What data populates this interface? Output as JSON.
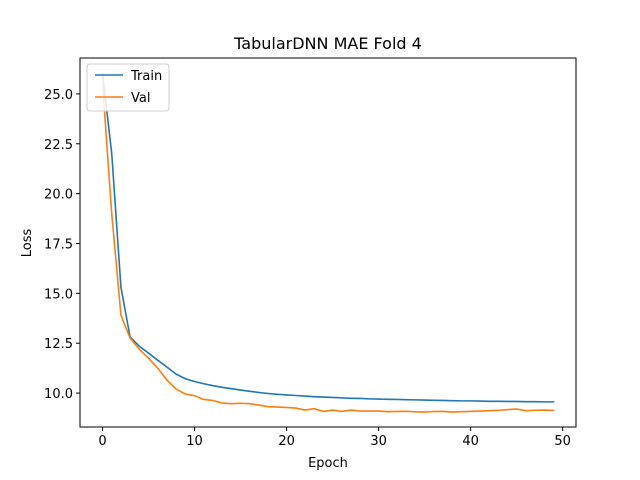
{
  "chart_data": {
    "type": "line",
    "title": "TabularDNN MAE Fold 4",
    "xlabel": "Epoch",
    "ylabel": "Loss",
    "xlim": [
      -2.45,
      51.45
    ],
    "ylim": [
      8.3,
      26.8
    ],
    "xticks": [
      0,
      10,
      20,
      30,
      40,
      50
    ],
    "yticks": [
      10.0,
      12.5,
      15.0,
      17.5,
      20.0,
      22.5,
      25.0
    ],
    "ytick_labels": [
      "10.0",
      "12.5",
      "15.0",
      "17.5",
      "20.0",
      "22.5",
      "25.0"
    ],
    "grid": false,
    "legend": "top-left",
    "x": [
      0,
      1,
      2,
      3,
      4,
      5,
      6,
      7,
      8,
      9,
      10,
      11,
      12,
      13,
      14,
      15,
      16,
      17,
      18,
      19,
      20,
      21,
      22,
      23,
      24,
      25,
      26,
      27,
      28,
      29,
      30,
      31,
      32,
      33,
      34,
      35,
      36,
      37,
      38,
      39,
      40,
      41,
      42,
      43,
      44,
      45,
      46,
      47,
      48,
      49
    ],
    "series": [
      {
        "name": "Train",
        "color": "#1f77b4",
        "values": [
          26.0,
          22.0,
          15.3,
          12.8,
          12.35,
          12.0,
          11.65,
          11.3,
          10.95,
          10.72,
          10.58,
          10.47,
          10.37,
          10.29,
          10.22,
          10.15,
          10.09,
          10.03,
          9.98,
          9.94,
          9.91,
          9.88,
          9.85,
          9.82,
          9.8,
          9.78,
          9.76,
          9.74,
          9.73,
          9.71,
          9.7,
          9.69,
          9.68,
          9.67,
          9.66,
          9.65,
          9.64,
          9.63,
          9.62,
          9.61,
          9.61,
          9.6,
          9.59,
          9.59,
          9.58,
          9.58,
          9.57,
          9.57,
          9.56,
          9.56
        ]
      },
      {
        "name": "Val",
        "color": "#ff7f0e",
        "values": [
          25.5,
          19.0,
          13.9,
          12.75,
          12.2,
          11.75,
          11.25,
          10.65,
          10.2,
          9.95,
          9.87,
          9.68,
          9.63,
          9.5,
          9.47,
          9.49,
          9.47,
          9.4,
          9.32,
          9.3,
          9.28,
          9.25,
          9.15,
          9.22,
          9.08,
          9.15,
          9.08,
          9.15,
          9.1,
          9.1,
          9.1,
          9.07,
          9.08,
          9.09,
          9.06,
          9.05,
          9.08,
          9.08,
          9.05,
          9.07,
          9.08,
          9.1,
          9.12,
          9.14,
          9.17,
          9.2,
          9.12,
          9.14,
          9.15,
          9.13
        ]
      }
    ]
  }
}
